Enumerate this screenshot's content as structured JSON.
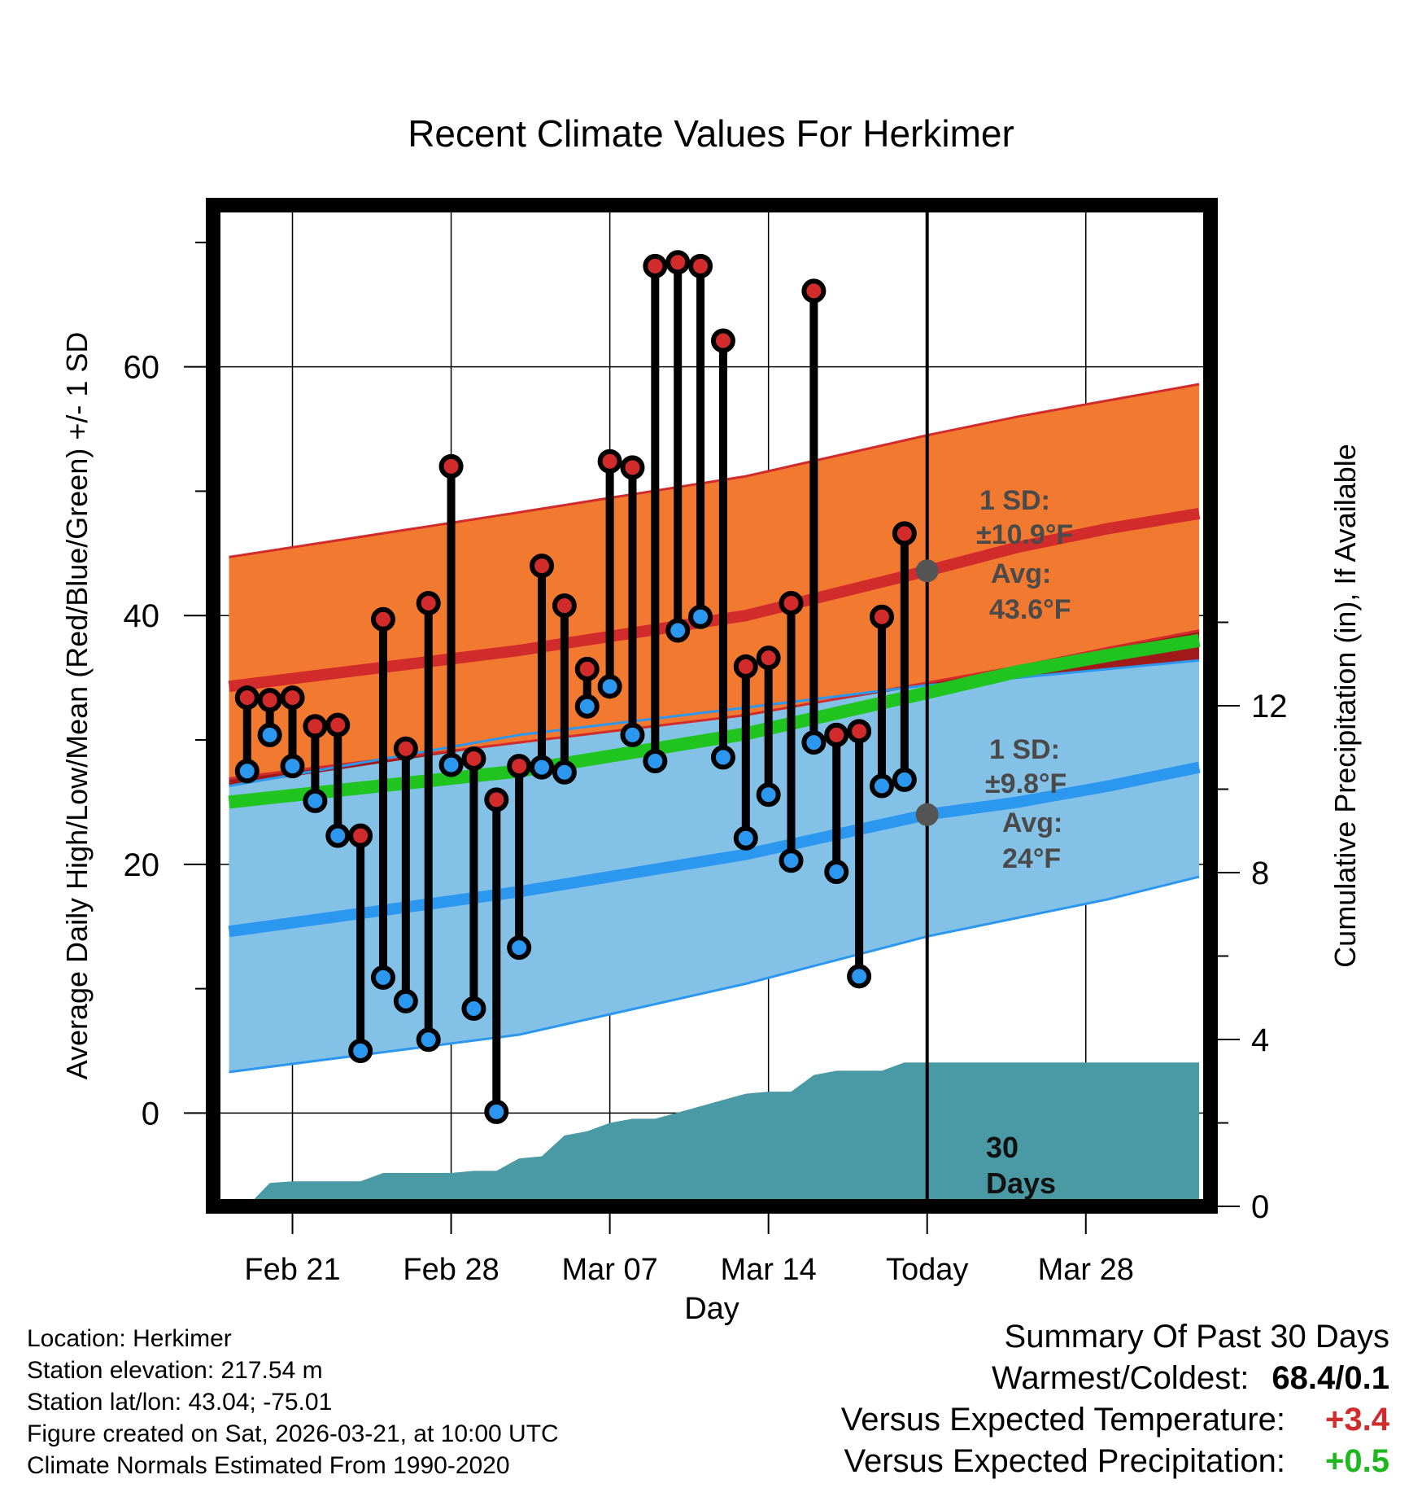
{
  "chart_data": {
    "type": "line",
    "title": "Recent Climate Values For Herkimer",
    "xlabel": "Day",
    "ylabel_left": "Average Daily High/Low/Mean (Red/Blue/Green) +/- 1 SD",
    "ylabel_right": "Cumulative Precipitation (in), If Available",
    "ylim_left": [
      -7.5,
      73
    ],
    "ylim_right": [
      0,
      24
    ],
    "xlim": [
      -3.5,
      40.5
    ],
    "yticks_left": [
      0,
      20,
      40,
      60
    ],
    "yticks_right": [
      0,
      4,
      8,
      12
    ],
    "xticks": [
      {
        "x": 0,
        "label": "Feb 21"
      },
      {
        "x": 7,
        "label": "Feb 28"
      },
      {
        "x": 14,
        "label": "Mar 07"
      },
      {
        "x": 21,
        "label": "Mar 14"
      },
      {
        "x": 28,
        "label": "Today"
      },
      {
        "x": 35,
        "label": "Mar 28"
      }
    ],
    "today_x": 28,
    "normals": {
      "x": [
        -2.8,
        10,
        20,
        28,
        32,
        36,
        40
      ],
      "high_mean": [
        34.3,
        37.2,
        40.0,
        43.6,
        45.5,
        47.0,
        48.2
      ],
      "high_upper": [
        44.7,
        48.3,
        51.2,
        54.5,
        56.0,
        57.3,
        58.6
      ],
      "high_lower": [
        26.9,
        29.8,
        32.0,
        34.6,
        35.9,
        37.4,
        38.8
      ],
      "low_mean": [
        14.6,
        17.8,
        20.8,
        24.0,
        25.0,
        26.3,
        27.8
      ],
      "low_upper": [
        26.3,
        30.4,
        32.6,
        34.4,
        35.0,
        35.7,
        36.4
      ],
      "low_lower": [
        3.3,
        6.3,
        10.4,
        14.2,
        15.7,
        17.2,
        19.0
      ],
      "mean_mean": [
        25.0,
        27.5,
        30.5,
        33.8,
        35.5,
        36.8,
        38.0
      ]
    },
    "series": [
      {
        "name": "Daily High",
        "color": "#d22b2b",
        "x": [
          -2,
          -1,
          0,
          1,
          2,
          3,
          4,
          5,
          6,
          7,
          8,
          9,
          10,
          11,
          12,
          13,
          14,
          15,
          16,
          17,
          18,
          19,
          20,
          21,
          22,
          23,
          24,
          25,
          26,
          27
        ],
        "values": [
          33.4,
          33.2,
          33.4,
          31.1,
          31.2,
          22.3,
          39.7,
          29.3,
          41.0,
          52.0,
          28.5,
          25.2,
          27.9,
          44.0,
          40.8,
          35.7,
          52.4,
          51.9,
          68.1,
          68.4,
          68.1,
          62.1,
          35.9,
          36.6,
          41.0,
          66.1,
          30.4,
          30.7,
          39.9,
          46.6
        ]
      },
      {
        "name": "Daily Low",
        "color": "#2b97ef",
        "x": [
          -2,
          -1,
          0,
          1,
          2,
          3,
          4,
          5,
          6,
          7,
          8,
          9,
          10,
          11,
          12,
          13,
          14,
          15,
          16,
          17,
          18,
          19,
          20,
          21,
          22,
          23,
          24,
          25,
          26,
          27
        ],
        "values": [
          27.5,
          30.4,
          27.9,
          25.1,
          22.3,
          5.0,
          10.9,
          9.0,
          5.9,
          28.0,
          8.4,
          0.1,
          13.3,
          27.8,
          27.4,
          32.7,
          34.3,
          30.4,
          28.3,
          38.8,
          39.9,
          28.6,
          22.1,
          25.6,
          20.3,
          29.8,
          19.4,
          11.0,
          26.3,
          26.8
        ]
      },
      {
        "name": "Cumulative Precipitation",
        "color": "#4a9aa5",
        "x": [
          -3,
          -2,
          -1,
          0,
          1,
          2,
          3,
          4,
          5,
          6,
          7,
          8,
          9,
          10,
          11,
          12,
          13,
          14,
          15,
          16,
          17,
          18,
          19,
          20,
          21,
          22,
          23,
          24,
          25,
          26,
          27,
          28,
          40
        ],
        "values": [
          0.0,
          0.0,
          0.56,
          0.6,
          0.6,
          0.6,
          0.6,
          0.8,
          0.8,
          0.8,
          0.8,
          0.85,
          0.85,
          1.15,
          1.2,
          1.7,
          1.8,
          2.0,
          2.1,
          2.1,
          2.25,
          2.4,
          2.55,
          2.7,
          2.75,
          2.75,
          3.15,
          3.25,
          3.25,
          3.25,
          3.45,
          3.45,
          3.45
        ]
      }
    ],
    "annotations": {
      "high_sd_line1": "1 SD:",
      "high_sd_line2": "±10.9°F",
      "high_avg_line1": "Avg:",
      "high_avg_line2": "43.6°F",
      "low_sd_line1": "1 SD:",
      "low_sd_line2": "±9.8°F",
      "low_avg_line1": "Avg:",
      "low_avg_line2": "24°F",
      "days_line1": "30",
      "days_line2": "Days"
    }
  },
  "station_info": {
    "location": "Location: Herkimer",
    "elevation": "Station elevation: 217.54 m",
    "latlon": "Station lat/lon: 43.04; -75.01",
    "created": "Figure created on Sat, 2026-03-21, at 10:00 UTC",
    "normals": "Climate Normals Estimated From 1990-2020"
  },
  "summary": {
    "title": "Summary Of Past 30 Days",
    "warmest_coldest_label": "Warmest/Coldest:",
    "warmest_coldest_value": "68.4/0.1",
    "temp_label": "Versus Expected Temperature:",
    "temp_value": "+3.4",
    "temp_color": "#d22b2b",
    "precip_label": "Versus Expected Precipitation:",
    "precip_value": "+0.5",
    "precip_color": "#1eb81e"
  }
}
